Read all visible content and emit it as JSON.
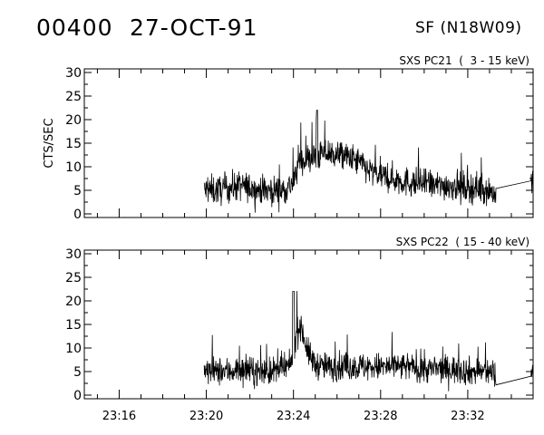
{
  "header": {
    "event_id": "00400",
    "date": "27-OCT-91",
    "location": "SF (N18W09)"
  },
  "chart_data": [
    {
      "type": "line",
      "title": "SXS PC21  (  3 - 15 keV)",
      "ylabel": "CTS/SEC",
      "xlabel": "",
      "xlim": [
        "23:14:24",
        "23:35:00"
      ],
      "ylim": [
        0,
        30
      ],
      "xticks": [
        "23:16",
        "23:20",
        "23:24",
        "23:28",
        "23:32"
      ],
      "yticks": [
        "0",
        "5",
        "10",
        "15",
        "20",
        "25",
        "30"
      ],
      "grid": false,
      "series": [
        {
          "x": [
            "23:19:54",
            "23:20:30",
            "23:21:00",
            "23:21:30",
            "23:22:00",
            "23:22:30",
            "23:23:00",
            "23:23:30",
            "23:24:00",
            "23:24:15",
            "23:24:30",
            "23:25:00",
            "23:25:30",
            "23:26:00",
            "23:26:30",
            "23:27:00",
            "23:27:30",
            "23:28:00",
            "23:28:30",
            "23:29:00",
            "23:29:30",
            "23:30:00",
            "23:30:30",
            "23:31:00",
            "23:31:30",
            "23:32:00",
            "23:32:30",
            "23:33:00",
            "23:33:18",
            "23:34:54",
            "23:35:00"
          ],
          "y": [
            5,
            5,
            5.5,
            6,
            5.5,
            5,
            5,
            5,
            6.5,
            11,
            11.5,
            12,
            13,
            12.5,
            12,
            11,
            9,
            8,
            7.5,
            7,
            6.5,
            6.5,
            6,
            6,
            6,
            5.5,
            5.5,
            5,
            4,
            7,
            5
          ]
        }
      ]
    },
    {
      "type": "line",
      "title": "SXS PC22  ( 15 - 40 keV)",
      "ylabel": "",
      "xlabel": "",
      "xlim": [
        "23:14:24",
        "23:35:00"
      ],
      "ylim": [
        0,
        30
      ],
      "xticks": [
        "23:16",
        "23:20",
        "23:24",
        "23:28",
        "23:32"
      ],
      "yticks": [
        "0",
        "5",
        "10",
        "15",
        "20",
        "25",
        "30"
      ],
      "grid": false,
      "series": [
        {
          "x": [
            "23:19:54",
            "23:20:30",
            "23:21:00",
            "23:21:30",
            "23:22:00",
            "23:22:30",
            "23:23:00",
            "23:23:30",
            "23:23:50",
            "23:24:00",
            "23:24:10",
            "23:24:20",
            "23:24:40",
            "23:25:00",
            "23:25:30",
            "23:26:00",
            "23:26:30",
            "23:27:00",
            "23:27:30",
            "23:28:00",
            "23:28:30",
            "23:29:00",
            "23:29:30",
            "23:30:00",
            "23:30:30",
            "23:31:00",
            "23:31:30",
            "23:32:00",
            "23:32:30",
            "23:33:00",
            "23:33:18",
            "23:34:54",
            "23:35:00"
          ],
          "y": [
            5,
            5,
            5,
            5.5,
            5,
            5,
            5,
            5.5,
            6,
            9,
            13,
            15,
            9,
            6.5,
            6,
            6,
            6,
            6,
            6,
            6,
            6,
            6,
            6,
            5.5,
            5.5,
            5.5,
            5.5,
            5,
            5,
            5,
            4,
            4,
            5
          ]
        }
      ]
    }
  ]
}
